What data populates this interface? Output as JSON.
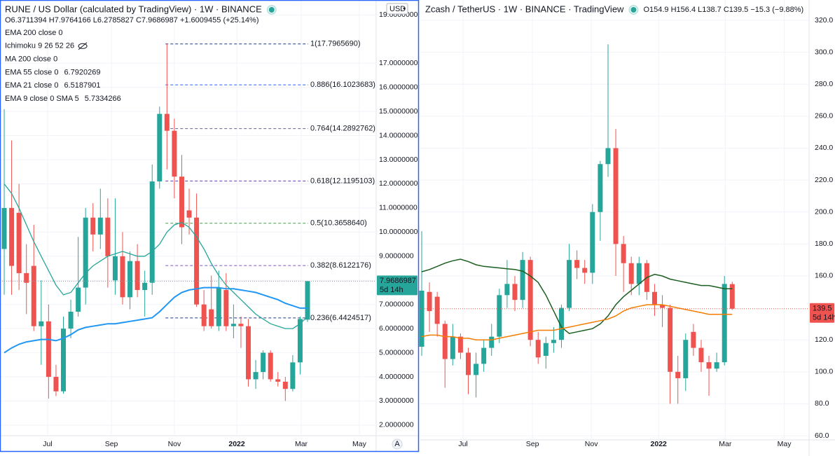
{
  "chart_data": [
    {
      "type": "candlestick",
      "title": "RUNE / US Dollar (calculated by TradingView) · 1W · BINANCE",
      "ohlc_label": "O6.3711394 H7.9764166 L6.2785827 C7.9686987 +1.6009455 (+25.14%)",
      "up_color": "#26a69a",
      "down_color": "#ef5350",
      "last_line_color": "#9598a1",
      "label_color": "#26a69a",
      "currency": "USD",
      "auto_label": "A",
      "countdown": "5d 14h",
      "open": [
        9.3,
        11.0,
        10.8,
        8.3,
        8.6,
        6.1,
        6.3,
        4.0,
        3.4,
        6.0,
        6.7,
        7.7,
        10.6,
        9.9,
        10.6,
        8.0,
        9.0,
        7.3,
        8.8,
        7.6,
        7.9,
        12.1,
        14.9,
        14.2,
        12.3,
        10.9,
        10.6,
        7.0,
        6.8,
        6.1,
        7.6,
        6.1,
        6.2,
        6.1,
        3.9,
        4.2,
        5.0,
        3.9,
        3.8,
        3.5,
        4.6,
        6.3711394
      ],
      "high": [
        15.1,
        13.8,
        12.0,
        9.5,
        10.3,
        8.0,
        7.0,
        4.5,
        6.5,
        7.2,
        9.8,
        11.0,
        11.2,
        11.8,
        11.4,
        11.4,
        10.0,
        9.2,
        9.5,
        8.4,
        12.8,
        15.2,
        17.8,
        14.7,
        13.2,
        11.8,
        11.6,
        7.6,
        8.2,
        8.4,
        8.3,
        7.0,
        6.5,
        6.4,
        4.7,
        5.1,
        5.1,
        4.2,
        4.0,
        4.9,
        6.5,
        7.9764166
      ],
      "low": [
        7.4,
        7.4,
        7.6,
        6.6,
        5.9,
        4.5,
        3.1,
        3.2,
        3.3,
        5.6,
        6.5,
        7.0,
        9.2,
        9.3,
        7.7,
        7.4,
        7.0,
        6.8,
        7.3,
        6.5,
        7.4,
        11.8,
        12.6,
        11.4,
        9.5,
        9.9,
        6.9,
        5.9,
        6.0,
        5.9,
        5.9,
        5.6,
        5.2,
        3.6,
        3.5,
        3.9,
        3.8,
        3.6,
        3.0,
        3.4,
        4.1,
        6.2785827
      ],
      "close": [
        11.0,
        8.6,
        8.3,
        7.9,
        6.1,
        6.3,
        4.0,
        3.4,
        6.0,
        6.7,
        7.7,
        10.6,
        9.9,
        10.6,
        9.0,
        9.0,
        7.3,
        8.8,
        7.6,
        7.9,
        12.1,
        14.9,
        14.2,
        12.3,
        10.2,
        10.6,
        7.0,
        6.1,
        6.1,
        7.7,
        6.1,
        6.2,
        6.1,
        3.9,
        4.2,
        5.0,
        3.9,
        3.8,
        3.5,
        4.6,
        6.4,
        7.9686987
      ],
      "indicators": [
        {
          "name": "EMA 200 close 0"
        },
        {
          "name": "Ichimoku 9 26 52 26",
          "hidden": true
        },
        {
          "name": "MA 200 close 0"
        },
        {
          "name": "EMA 55 close 0",
          "last_value": 6.7920269,
          "color": "#2196f3",
          "values": [
            5.0,
            5.2,
            5.35,
            5.45,
            5.5,
            5.55,
            5.55,
            5.5,
            5.6,
            5.75,
            5.95,
            6.05,
            6.1,
            6.15,
            6.2,
            6.2,
            6.25,
            6.3,
            6.35,
            6.4,
            6.45,
            6.7,
            7.0,
            7.3,
            7.5,
            7.6,
            7.65,
            7.7,
            7.7,
            7.7,
            7.65,
            7.65,
            7.6,
            7.55,
            7.5,
            7.4,
            7.3,
            7.2,
            7.05,
            6.95,
            6.85,
            6.85
          ]
        },
        {
          "name": "EMA 21 close 0",
          "last_value": 6.5187901,
          "color": "#26a69a",
          "values": [
            12.0,
            11.6,
            11.0,
            10.3,
            9.6,
            9.0,
            8.4,
            7.8,
            7.4,
            7.5,
            7.9,
            8.3,
            8.6,
            8.8,
            9.0,
            9.1,
            9.2,
            9.1,
            9.0,
            9.0,
            9.2,
            9.5,
            10.0,
            10.3,
            10.4,
            10.2,
            9.8,
            9.3,
            8.7,
            8.2,
            7.8,
            7.5,
            7.2,
            6.9,
            6.6,
            6.4,
            6.2,
            6.1,
            6.0,
            6.0,
            6.2,
            6.5
          ]
        },
        {
          "name": "EMA 9 close 0 SMA 5",
          "last_value": 5.7334266,
          "color": "#0097a7"
        }
      ],
      "fib_levels": [
        {
          "value": 17.796569,
          "label": "1(17.7965690)",
          "color": "#1e3a8a"
        },
        {
          "value": 16.1023683,
          "label": "0.886(16.1023683)",
          "color": "#2962ff"
        },
        {
          "value": 14.2892762,
          "label": "0.764(14.2892762)",
          "color": "#6d5f8e"
        },
        {
          "value": 12.1195103,
          "label": "0.618(12.1195103)",
          "color": "#673ab7"
        },
        {
          "value": 10.365864,
          "label": "0.5(10.3658640)",
          "color": "#43a047"
        },
        {
          "value": 8.6122176,
          "label": "0.382(8.6122176)",
          "color": "#7e57c2"
        },
        {
          "value": 6.4424517,
          "label": "0.236(6.4424517)",
          "color": "#1e3a8a"
        }
      ],
      "xlim": [
        -0.57,
        50.28
      ],
      "xticks": [
        {
          "value": 5.87,
          "label": "Jul"
        },
        {
          "value": 14.49,
          "label": "Sep"
        },
        {
          "value": 23.0,
          "label": "Nov"
        },
        {
          "value": 31.44,
          "label": "2022"
        },
        {
          "value": 40.15,
          "label": "Mar"
        },
        {
          "value": 48.0,
          "label": "May"
        }
      ],
      "ylim": [
        1.62,
        19.62
      ],
      "yticks": [
        {
          "value": 2,
          "label": "2.0000000"
        },
        {
          "value": 3,
          "label": "3.0000000"
        },
        {
          "value": 4,
          "label": "4.0000000"
        },
        {
          "value": 5,
          "label": "5.0000000"
        },
        {
          "value": 6,
          "label": "6.0000000"
        },
        {
          "value": 7,
          "label": "7.0000000"
        },
        {
          "value": 8,
          "label": "8.0000000"
        },
        {
          "value": 9,
          "label": "9.0000000"
        },
        {
          "value": 10,
          "label": "10.0000000"
        },
        {
          "value": 11,
          "label": "11.0000000"
        },
        {
          "value": 12,
          "label": "12.0000000"
        },
        {
          "value": 13,
          "label": "13.0000000"
        },
        {
          "value": 14,
          "label": "14.0000000"
        },
        {
          "value": 15,
          "label": "15.0000000"
        },
        {
          "value": 16,
          "label": "16.0000000"
        },
        {
          "value": 17,
          "label": "17.0000000"
        },
        {
          "value": 19,
          "label": "19.0000000"
        }
      ],
      "grid": true
    },
    {
      "type": "candlestick",
      "title": "Zcash / TetherUS · 1W · BINANCE · TradingView",
      "ohlc_label": "O154.9 H156.4 L138.7 C139.5 −15.3 (−9.88%)",
      "up_color": "#26a69a",
      "down_color": "#ef5350",
      "last_line_color": "#ef5350",
      "label_color": "#ef5350",
      "countdown": "5d 14h",
      "open": [
        115.7,
        150,
        147,
        130,
        108,
        122,
        112,
        98,
        105,
        115,
        122,
        148,
        155,
        145,
        170,
        120,
        110,
        118,
        120,
        140,
        170,
        165,
        162,
        200,
        230,
        240,
        180,
        168,
        155,
        168,
        150,
        142,
        140,
        100,
        96,
        125,
        115,
        106,
        102,
        106,
        154.9
      ],
      "high": [
        188,
        156,
        150,
        132,
        130,
        124,
        115,
        112,
        120,
        130,
        152,
        170,
        160,
        175,
        172,
        125,
        122,
        128,
        142,
        180,
        176,
        170,
        205,
        232,
        305,
        252,
        185,
        172,
        172,
        170,
        155,
        148,
        142,
        110,
        124,
        130,
        120,
        110,
        112,
        160,
        156.4
      ],
      "low": [
        110,
        125,
        122,
        90,
        104,
        108,
        86,
        84,
        100,
        110,
        118,
        140,
        138,
        140,
        116,
        105,
        102,
        112,
        115,
        138,
        158,
        155,
        155,
        182,
        222,
        160,
        150,
        148,
        148,
        145,
        135,
        128,
        80,
        80,
        88,
        110,
        100,
        85,
        100,
        104,
        138.7
      ],
      "close": [
        150.8,
        138,
        130,
        108,
        122,
        112,
        98,
        105,
        115,
        122,
        148,
        155,
        145,
        170,
        120,
        109,
        118,
        120,
        140,
        170,
        165,
        162,
        200,
        230,
        240,
        180,
        168,
        155,
        168,
        150,
        142,
        140,
        100,
        96,
        120,
        115,
        106,
        102,
        106,
        155,
        139.5
      ],
      "series": [
        {
          "color": "#1b5e20",
          "values": [
            162.6,
            164,
            166,
            168,
            169.5,
            170.5,
            169,
            167,
            166,
            165.5,
            165,
            164.5,
            164,
            163,
            160,
            156,
            148,
            138,
            128,
            124,
            125,
            126,
            127,
            130,
            135,
            142,
            147,
            151,
            155,
            159,
            161,
            160,
            158,
            157,
            156,
            155,
            154,
            154,
            153,
            152,
            152
          ]
        },
        {
          "color": "#f57c00",
          "values": [
            122,
            123,
            123,
            122,
            122,
            121,
            121,
            120,
            120,
            120,
            121,
            122,
            123,
            124,
            125,
            126,
            126,
            126,
            127,
            128,
            129,
            130,
            131,
            132,
            133,
            135,
            138,
            140,
            141,
            142,
            142,
            142,
            141,
            140,
            139,
            138,
            137,
            136,
            136,
            136,
            136
          ]
        }
      ],
      "xlim": [
        -0.18,
        49.9
      ],
      "xticks": [
        {
          "value": 5.33,
          "label": "Jul"
        },
        {
          "value": 14.27,
          "label": "Sep"
        },
        {
          "value": 21.85,
          "label": "Nov"
        },
        {
          "value": 30.52,
          "label": "2022"
        },
        {
          "value": 39.1,
          "label": "Mar"
        },
        {
          "value": 46.7,
          "label": "May"
        }
      ],
      "ylim": [
        57.4,
        332.7
      ],
      "yticks": [
        {
          "value": 60,
          "label": "60.0"
        },
        {
          "value": 80,
          "label": "80.0"
        },
        {
          "value": 100,
          "label": "100.0"
        },
        {
          "value": 120,
          "label": "120.0"
        },
        {
          "value": 160,
          "label": "160.0"
        },
        {
          "value": 180,
          "label": "180.0"
        },
        {
          "value": 200,
          "label": "200.0"
        },
        {
          "value": 220,
          "label": "220.0"
        },
        {
          "value": 240,
          "label": "240.0"
        },
        {
          "value": 260,
          "label": "260.0"
        },
        {
          "value": 280,
          "label": "280.0"
        },
        {
          "value": 300,
          "label": "300.0"
        },
        {
          "value": 320,
          "label": "320.0"
        }
      ],
      "grid": true
    }
  ]
}
